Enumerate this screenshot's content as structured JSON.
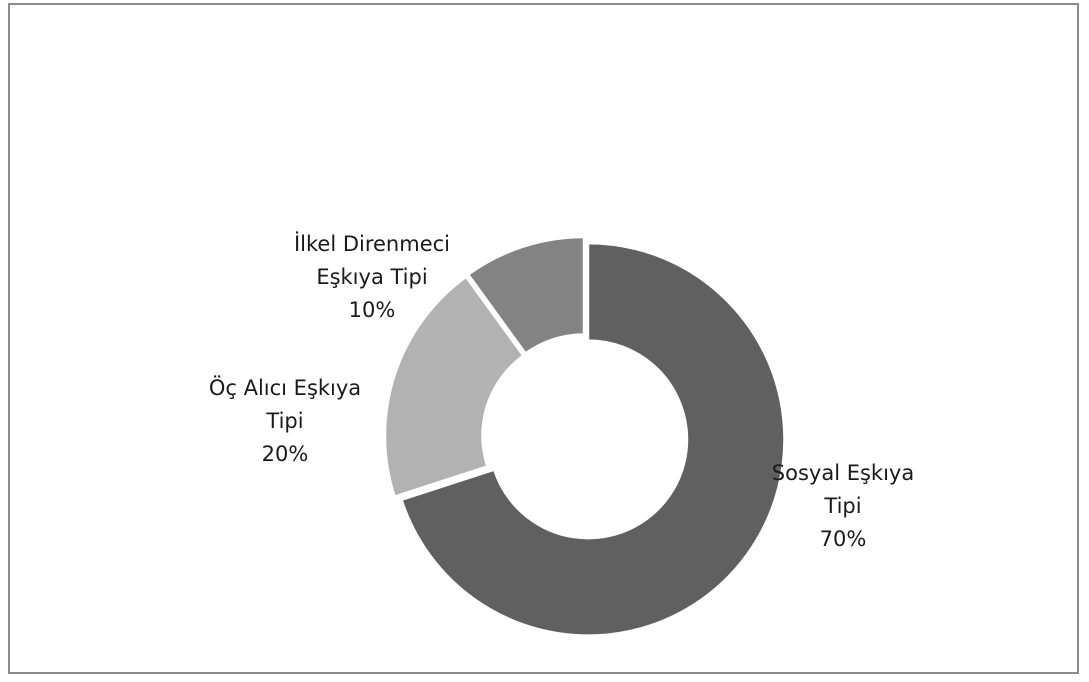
{
  "chart_data": {
    "type": "pie",
    "donut": true,
    "slices": [
      {
        "label_lines": [
          "Sosyal Eşkıya",
          "Tipi"
        ],
        "value": 70,
        "value_label": "70%",
        "color": "#606060"
      },
      {
        "label_lines": [
          "Öç Alıcı Eşkıya",
          "Tipi"
        ],
        "value": 20,
        "value_label": "20%",
        "color": "#b2b2b2"
      },
      {
        "label_lines": [
          "İlkel Direnmeci",
          "Eşkıya Tipi"
        ],
        "value": 10,
        "value_label": "10%",
        "color": "#838383"
      }
    ],
    "legend": "none",
    "start": "top",
    "direction": "clockwise"
  }
}
